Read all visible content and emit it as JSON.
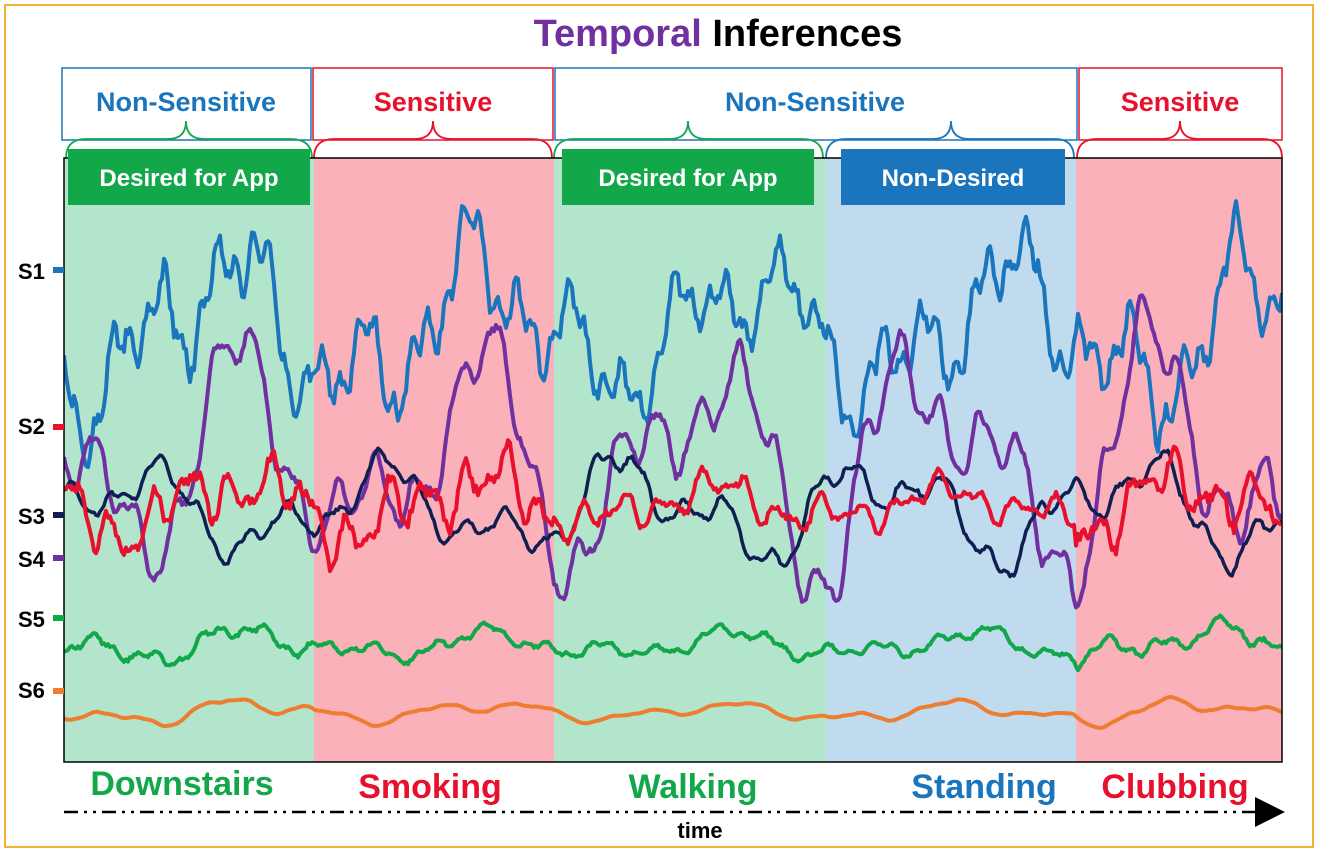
{
  "title": {
    "part1": "Temporal",
    "part2": " Inferences"
  },
  "colors": {
    "purple": "#7030a0",
    "blue": "#1a75bc",
    "red": "#e8112d",
    "green": "#12a84a",
    "navy": "#0f1f52",
    "orange": "#ed7d31",
    "frame": "#f2b233",
    "bg_green": "#b3e5cc",
    "bg_red": "#fbb1b9",
    "bg_blue": "#c0dbee"
  },
  "sensitivity": [
    {
      "label": "Non-Sensitive",
      "kind": "non-sensitive"
    },
    {
      "label": "Sensitive",
      "kind": "sensitive"
    },
    {
      "label": "Non-Sensitive",
      "kind": "non-sensitive"
    },
    {
      "label": "Sensitive",
      "kind": "sensitive"
    }
  ],
  "desirability": [
    {
      "label": "Desired for App",
      "kind": "desired"
    },
    {
      "label": "Desired for App",
      "kind": "desired"
    },
    {
      "label": "Non-Desired",
      "kind": "non-desired"
    }
  ],
  "activities": [
    {
      "label": "Downstairs",
      "kind": "desired"
    },
    {
      "label": "Smoking",
      "kind": "sensitive"
    },
    {
      "label": "Walking",
      "kind": "desired"
    },
    {
      "label": "Standing",
      "kind": "non-desired"
    },
    {
      "label": "Clubbing",
      "kind": "sensitive"
    }
  ],
  "sensors": [
    {
      "label": "S1",
      "color": "#1a75bc"
    },
    {
      "label": "S2",
      "color": "#e8112d"
    },
    {
      "label": "S3",
      "color": "#0f1f52"
    },
    {
      "label": "S4",
      "color": "#7030a0"
    },
    {
      "label": "S5",
      "color": "#12a84a"
    },
    {
      "label": "S6",
      "color": "#ed7d31"
    }
  ],
  "axis": {
    "label": "time"
  }
}
